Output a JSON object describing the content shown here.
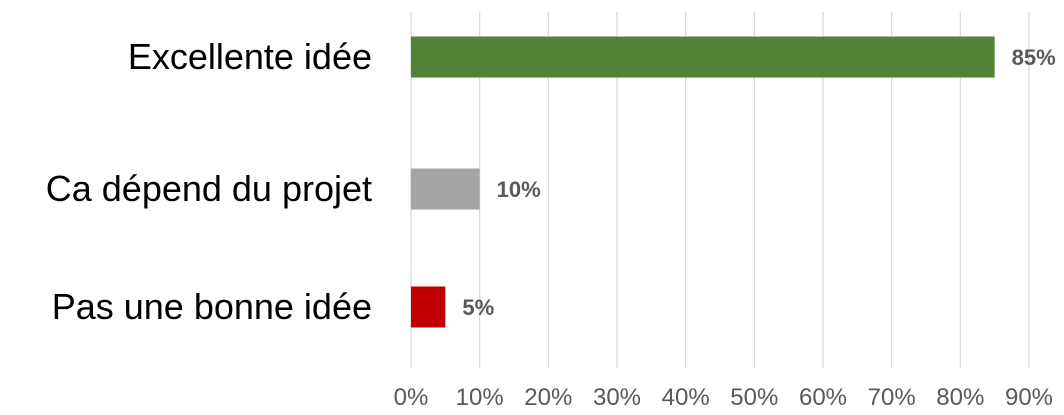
{
  "chart_data": {
    "type": "bar",
    "orientation": "horizontal",
    "categories": [
      "Excellente idée",
      "Ca dépend du projet",
      "Pas une bonne idée"
    ],
    "values": [
      85,
      10,
      5
    ],
    "data_labels": [
      "85%",
      "10%",
      "5%"
    ],
    "colors": [
      "#548235",
      "#a5a5a5",
      "#c00000"
    ],
    "xlim": [
      0,
      90
    ],
    "xticks": [
      0,
      10,
      20,
      30,
      40,
      50,
      60,
      70,
      80,
      90
    ],
    "xtick_labels": [
      "0%",
      "10%",
      "20%",
      "30%",
      "40%",
      "50%",
      "60%",
      "70%",
      "80%",
      "90%"
    ],
    "grid": "vertical",
    "legend": "none",
    "title": "",
    "xlabel": "",
    "ylabel": ""
  }
}
